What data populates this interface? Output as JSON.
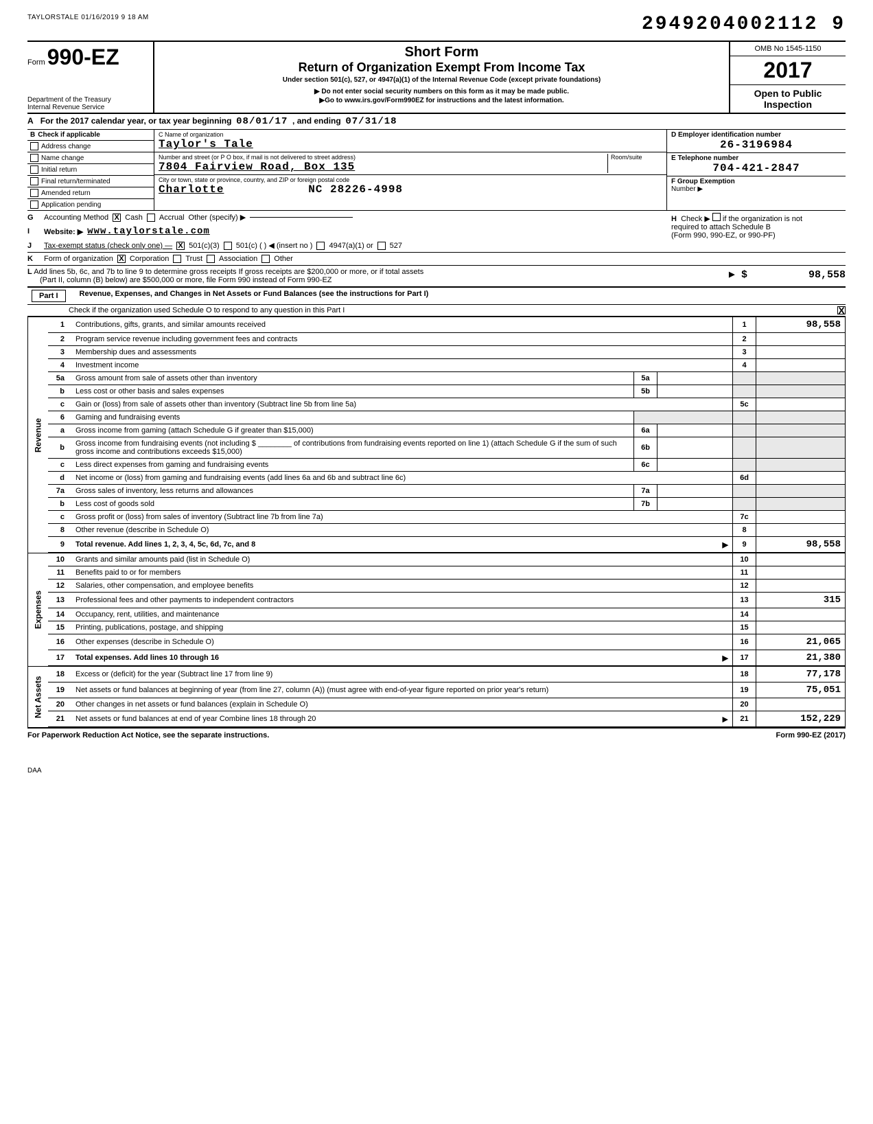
{
  "stamp": "TAYLORSTALE 01/16/2019 9 18 AM",
  "document_number": "2949204002112 9",
  "form": {
    "prefix": "Form",
    "id": "990-EZ",
    "dept": "Department of the Treasury\nInternal Revenue Service",
    "short_form": "Short Form",
    "title": "Return of Organization Exempt From Income Tax",
    "subtitle": "Under section 501(c), 527, or 4947(a)(1) of the Internal Revenue Code (except private foundations)",
    "warn1": "▶ Do not enter social security numbers on this form as it may be made public.",
    "warn2": "▶Go to www.irs.gov/Form990EZ for instructions and the latest information.",
    "omb": "OMB No 1545-1150",
    "year": "2017",
    "open": "Open to Public",
    "inspection": "Inspection"
  },
  "line_a": {
    "text": "For the 2017 calendar year, or tax year beginning",
    "begin": "08/01/17",
    "mid": ", and ending",
    "end": "07/31/18"
  },
  "b": {
    "header": "Check if applicable",
    "items": [
      "Address change",
      "Name change",
      "Initial return",
      "Final return/terminated",
      "Amended return",
      "Application pending"
    ]
  },
  "c": {
    "name_lbl": "C  Name of organization",
    "name": "Taylor's Tale",
    "addr_lbl": "Number and street (or P O box, if mail is not delivered to street address)",
    "room_lbl": "Room/suite",
    "addr": "7804 Fairview Road, Box 135",
    "city_lbl": "City or town, state or province, country, and ZIP or foreign postal code",
    "city": "Charlotte",
    "zip": "NC 28226-4998"
  },
  "d": {
    "ein_lbl": "D  Employer identification number",
    "ein": "26-3196984",
    "tel_lbl": "E  Telephone number",
    "tel": "704-421-2847",
    "grp_lbl": "F  Group Exemption",
    "num_lbl": "Number  ▶"
  },
  "g": {
    "label": "Accounting Method",
    "cash": "Cash",
    "accrual": "Accrual",
    "other": "Other (specify) ▶"
  },
  "h": {
    "label": "Check ▶",
    "text1": "if the organization is not",
    "text2": "required to attach Schedule B",
    "text3": "(Form 990, 990-EZ, or 990-PF)"
  },
  "i": {
    "label": "Website: ▶",
    "val": "www.taylorstale.com"
  },
  "j": {
    "label": "Tax-exempt status (check only one) —",
    "opts": [
      "501(c)(3)",
      "501(c) (         ) ◀ (insert no )",
      "4947(a)(1) or",
      "527"
    ]
  },
  "k": {
    "label": "Form of organization",
    "opts": [
      "Corporation",
      "Trust",
      "Association",
      "Other"
    ]
  },
  "l": {
    "text1": "Add lines 5b, 6c, and 7b to line 9 to determine gross receipts  If gross receipts are $200,000 or more, or if total assets",
    "text2": "(Part II, column (B) below) are $500,000 or more, file Form 990 instead of Form 990-EZ",
    "arrow": "▶ $",
    "amount": "98,558"
  },
  "part1": {
    "label": "Part I",
    "title": "Revenue, Expenses, and Changes in Net Assets or Fund Balances (see the instructions for Part I)",
    "sched_o": "Check if the organization used Schedule O to respond to any question in this Part I",
    "checked": "X"
  },
  "sections": {
    "revenue": "Revenue",
    "expenses": "Expenses",
    "net_assets": "Net Assets"
  },
  "lines": [
    {
      "n": "1",
      "d": "Contributions, gifts, grants, and similar amounts received",
      "rn": "1",
      "amt": "98,558"
    },
    {
      "n": "2",
      "d": "Program service revenue including government fees and contracts",
      "rn": "2",
      "amt": ""
    },
    {
      "n": "3",
      "d": "Membership dues and assessments",
      "rn": "3",
      "amt": ""
    },
    {
      "n": "4",
      "d": "Investment income",
      "rn": "4",
      "amt": ""
    },
    {
      "n": "5a",
      "d": "Gross amount from sale of assets other than inventory",
      "mid_n": "5a",
      "mid_amt": "",
      "shaded": true
    },
    {
      "n": "b",
      "d": "Less  cost or other basis and sales expenses",
      "mid_n": "5b",
      "mid_amt": "",
      "shaded": true
    },
    {
      "n": "c",
      "d": "Gain or (loss) from sale of assets other than inventory (Subtract line 5b from line 5a)",
      "rn": "5c",
      "amt": ""
    },
    {
      "n": "6",
      "d": "Gaming and fundraising events",
      "shaded": true,
      "noright": true
    },
    {
      "n": "a",
      "d": "Gross income from gaming (attach Schedule G if greater than $15,000)",
      "mid_n": "6a",
      "mid_amt": "",
      "shaded": true
    },
    {
      "n": "b",
      "d": "Gross income from fundraising events (not including $ ________ of contributions from fundraising events reported on line 1) (attach Schedule G if the sum of such gross income and contributions exceeds $15,000)",
      "mid_n": "6b",
      "mid_amt": "",
      "shaded": true
    },
    {
      "n": "c",
      "d": "Less  direct expenses from gaming and fundraising events",
      "mid_n": "6c",
      "mid_amt": "",
      "shaded": true
    },
    {
      "n": "d",
      "d": "Net income or (loss) from gaming and fundraising events (add lines 6a and 6b and subtract line 6c)",
      "rn": "6d",
      "amt": ""
    },
    {
      "n": "7a",
      "d": "Gross sales of inventory, less returns and allowances",
      "mid_n": "7a",
      "mid_amt": "",
      "shaded": true
    },
    {
      "n": "b",
      "d": "Less  cost of goods sold",
      "mid_n": "7b",
      "mid_amt": "",
      "shaded": true
    },
    {
      "n": "c",
      "d": "Gross profit or (loss) from sales of inventory (Subtract line 7b from line 7a)",
      "rn": "7c",
      "amt": ""
    },
    {
      "n": "8",
      "d": "Other revenue (describe in Schedule O)",
      "rn": "8",
      "amt": ""
    },
    {
      "n": "9",
      "d": "Total revenue. Add lines 1, 2, 3, 4, 5c, 6d, 7c, and 8",
      "rn": "9",
      "amt": "98,558",
      "arrow": true,
      "bold": true
    }
  ],
  "exp_lines": [
    {
      "n": "10",
      "d": "Grants and similar amounts paid (list in Schedule O)",
      "rn": "10",
      "amt": ""
    },
    {
      "n": "11",
      "d": "Benefits paid to or for members",
      "rn": "11",
      "amt": ""
    },
    {
      "n": "12",
      "d": "Salaries, other compensation, and employee benefits",
      "rn": "12",
      "amt": ""
    },
    {
      "n": "13",
      "d": "Professional fees and other payments to independent contractors",
      "rn": "13",
      "amt": "315"
    },
    {
      "n": "14",
      "d": "Occupancy, rent, utilities, and maintenance",
      "rn": "14",
      "amt": ""
    },
    {
      "n": "15",
      "d": "Printing, publications, postage, and shipping",
      "rn": "15",
      "amt": ""
    },
    {
      "n": "16",
      "d": "Other expenses (describe in Schedule O)",
      "rn": "16",
      "amt": "21,065"
    },
    {
      "n": "17",
      "d": "Total expenses. Add lines 10 through 16",
      "rn": "17",
      "amt": "21,380",
      "arrow": true,
      "bold": true
    }
  ],
  "na_lines": [
    {
      "n": "18",
      "d": "Excess or (deficit) for the year (Subtract line 17 from line 9)",
      "rn": "18",
      "amt": "77,178"
    },
    {
      "n": "19",
      "d": "Net assets or fund balances at beginning of year (from line 27, column (A)) (must agree with end-of-year figure reported on prior year's return)",
      "rn": "19",
      "amt": "75,051"
    },
    {
      "n": "20",
      "d": "Other changes in net assets or fund balances (explain in Schedule O)",
      "rn": "20",
      "amt": ""
    },
    {
      "n": "21",
      "d": "Net assets or fund balances at end of year  Combine lines 18 through 20",
      "rn": "21",
      "amt": "152,229",
      "arrow": true
    }
  ],
  "footer": {
    "left": "For Paperwork Reduction Act Notice, see the separate instructions.",
    "right": "Form 990-EZ (2017)",
    "daa": "DAA"
  }
}
